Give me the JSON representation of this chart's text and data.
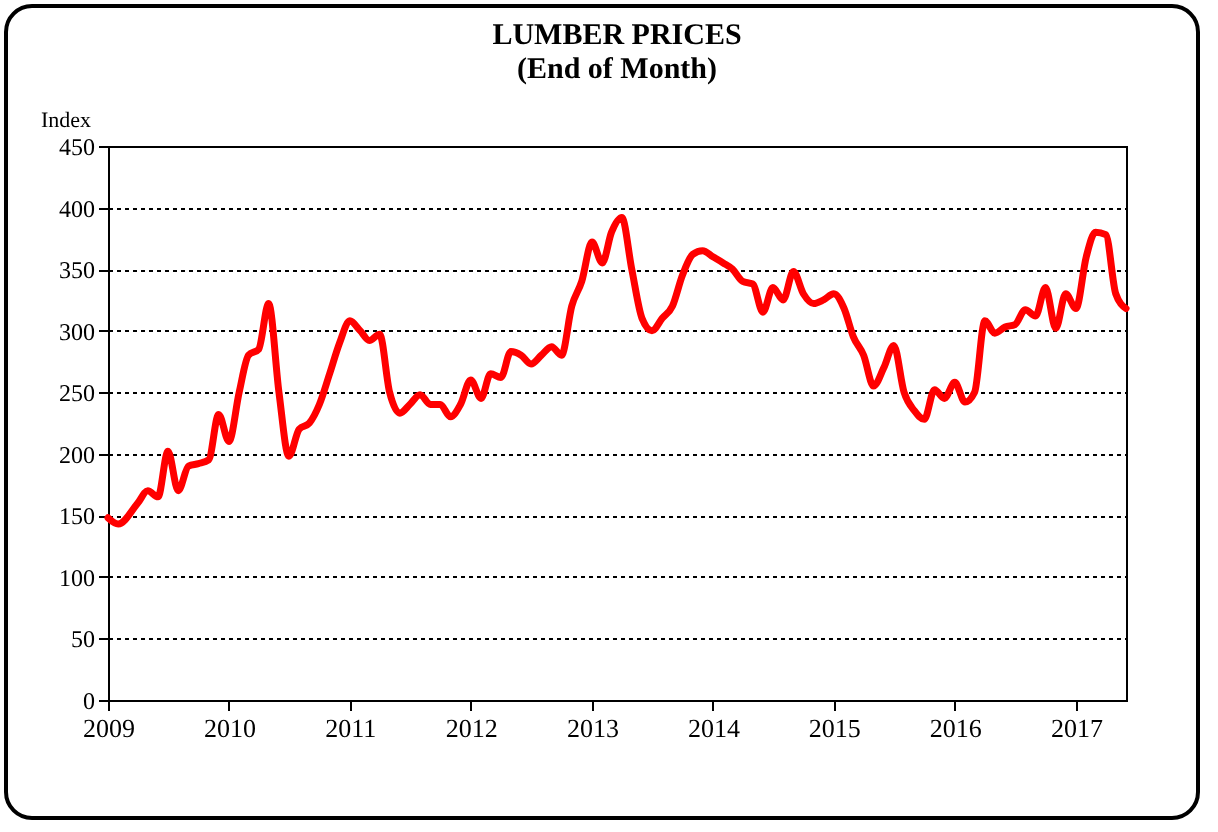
{
  "chart_data": {
    "type": "line",
    "title": "LUMBER PRICES",
    "subtitle": "(End of Month)",
    "ylabel": "Index",
    "x": [
      "2009-01",
      "2009-02",
      "2009-04",
      "2009-05",
      "2009-06",
      "2009-07",
      "2009-08",
      "2009-09",
      "2009-10",
      "2009-11",
      "2009-12",
      "2010-01",
      "2010-02",
      "2010-03",
      "2010-04",
      "2010-05",
      "2010-06",
      "2010-07",
      "2010-08",
      "2010-09",
      "2010-10",
      "2010-11",
      "2010-12",
      "2011-01",
      "2011-02",
      "2011-03",
      "2011-04",
      "2011-05",
      "2011-06",
      "2011-07",
      "2011-08",
      "2011-09",
      "2011-10",
      "2011-11",
      "2011-12",
      "2012-01",
      "2012-02",
      "2012-03",
      "2012-04",
      "2012-05",
      "2012-06",
      "2012-07",
      "2012-08",
      "2012-09",
      "2012-10",
      "2012-11",
      "2012-12",
      "2013-01",
      "2013-02",
      "2013-03",
      "2013-04",
      "2013-05",
      "2013-06",
      "2013-07",
      "2013-08",
      "2013-09",
      "2013-10",
      "2013-11",
      "2013-12",
      "2014-01",
      "2014-02",
      "2014-03",
      "2014-04",
      "2014-05",
      "2014-06",
      "2014-07",
      "2014-08",
      "2014-09",
      "2014-10",
      "2014-11",
      "2014-12",
      "2015-01",
      "2015-02",
      "2015-03",
      "2015-04",
      "2015-05",
      "2015-06",
      "2015-07",
      "2015-08",
      "2015-09",
      "2015-10",
      "2015-11",
      "2015-12",
      "2016-01",
      "2016-02",
      "2016-03",
      "2016-04",
      "2016-05",
      "2016-06",
      "2016-07",
      "2016-08",
      "2016-09",
      "2016-10",
      "2016-11",
      "2016-12",
      "2017-01",
      "2017-02",
      "2017-03",
      "2017-04",
      "2017-05",
      "2017-06"
    ],
    "series": [
      {
        "color": "#ff0000",
        "values": [
          148,
          143,
          160,
          170,
          165,
          202,
          170,
          190,
          192,
          195,
          232,
          210,
          250,
          280,
          285,
          322,
          250,
          198,
          220,
          225,
          240,
          265,
          290,
          308,
          300,
          292,
          297,
          250,
          233,
          240,
          248,
          240,
          240,
          230,
          240,
          260,
          245,
          265,
          262,
          283,
          280,
          273,
          280,
          287,
          280,
          320,
          340,
          372,
          355,
          380,
          392,
          350,
          310,
          300,
          310,
          320,
          345,
          362,
          365,
          360,
          355,
          350,
          340,
          338,
          315,
          335,
          325,
          348,
          330,
          322,
          325,
          330,
          318,
          295,
          280,
          255,
          270,
          288,
          250,
          235,
          228,
          252,
          245,
          258,
          242,
          250,
          308,
          298,
          303,
          305,
          317,
          312,
          335,
          302,
          330,
          318,
          360,
          380,
          378,
          330,
          318
        ]
      }
    ],
    "xlim": [
      "2009-01",
      "2017-06"
    ],
    "xticks": [
      {
        "value": "2009",
        "label": "2009"
      },
      {
        "value": "2010",
        "label": "2010"
      },
      {
        "value": "2011",
        "label": "2011"
      },
      {
        "value": "2012",
        "label": "2012"
      },
      {
        "value": "2013",
        "label": "2013"
      },
      {
        "value": "2014",
        "label": "2014"
      },
      {
        "value": "2015",
        "label": "2015"
      },
      {
        "value": "2016",
        "label": "2016"
      },
      {
        "value": "2017",
        "label": "2017"
      }
    ],
    "ylim": [
      0,
      450
    ],
    "yticks": [
      0,
      50,
      100,
      150,
      200,
      250,
      300,
      350,
      400,
      450
    ],
    "grid": "y",
    "marker": "none",
    "line_style": "solid"
  }
}
